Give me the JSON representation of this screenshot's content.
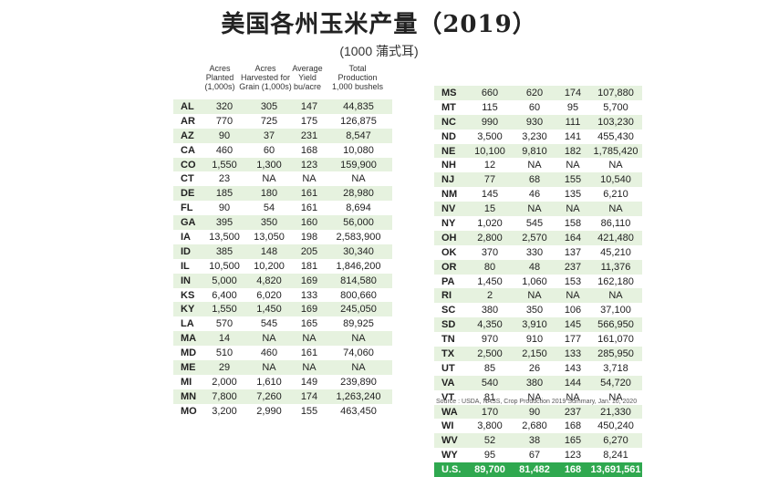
{
  "title": "美国各州玉米产量（2019）",
  "subtitle": "(1000 蒲式耳)",
  "columns": [
    {
      "line1": "Acres",
      "line2": "Planted",
      "line3": "(1,000s)"
    },
    {
      "line1": "Acres",
      "line2": "Harvested for",
      "line3": "Grain (1,000s)"
    },
    {
      "line1": "Average",
      "line2": "Yield",
      "line3": "bu/acre"
    },
    {
      "line1": "Total",
      "line2": "Production",
      "line3": "1,000 bushels"
    }
  ],
  "chart_data": {
    "type": "table",
    "title": "美国各州玉米产量（2019）",
    "subtitle": "(1000 蒲式耳)",
    "headers": [
      "Acres Planted (1,000s)",
      "Acres Harvested for Grain (1,000s)",
      "Average Yield bu/acre",
      "Total Production 1,000 bushels"
    ],
    "rows": [
      [
        "AL",
        "320",
        "305",
        "147",
        "44,835"
      ],
      [
        "AR",
        "770",
        "725",
        "175",
        "126,875"
      ],
      [
        "AZ",
        "90",
        "37",
        "231",
        "8,547"
      ],
      [
        "CA",
        "460",
        "60",
        "168",
        "10,080"
      ],
      [
        "CO",
        "1,550",
        "1,300",
        "123",
        "159,900"
      ],
      [
        "CT",
        "23",
        "NA",
        "NA",
        "NA"
      ],
      [
        "DE",
        "185",
        "180",
        "161",
        "28,980"
      ],
      [
        "FL",
        "90",
        "54",
        "161",
        "8,694"
      ],
      [
        "GA",
        "395",
        "350",
        "160",
        "56,000"
      ],
      [
        "IA",
        "13,500",
        "13,050",
        "198",
        "2,583,900"
      ],
      [
        "ID",
        "385",
        "148",
        "205",
        "30,340"
      ],
      [
        "IL",
        "10,500",
        "10,200",
        "181",
        "1,846,200"
      ],
      [
        "IN",
        "5,000",
        "4,820",
        "169",
        "814,580"
      ],
      [
        "KS",
        "6,400",
        "6,020",
        "133",
        "800,660"
      ],
      [
        "KY",
        "1,550",
        "1,450",
        "169",
        "245,050"
      ],
      [
        "LA",
        "570",
        "545",
        "165",
        "89,925"
      ],
      [
        "MA",
        "14",
        "NA",
        "NA",
        "NA"
      ],
      [
        "MD",
        "510",
        "460",
        "161",
        "74,060"
      ],
      [
        "ME",
        "29",
        "NA",
        "NA",
        "NA"
      ],
      [
        "MI",
        "2,000",
        "1,610",
        "149",
        "239,890"
      ],
      [
        "MN",
        "7,800",
        "7,260",
        "174",
        "1,263,240"
      ],
      [
        "MO",
        "3,200",
        "2,990",
        "155",
        "463,450"
      ],
      [
        "MS",
        "660",
        "620",
        "174",
        "107,880"
      ],
      [
        "MT",
        "115",
        "60",
        "95",
        "5,700"
      ],
      [
        "NC",
        "990",
        "930",
        "111",
        "103,230"
      ],
      [
        "ND",
        "3,500",
        "3,230",
        "141",
        "455,430"
      ],
      [
        "NE",
        "10,100",
        "9,810",
        "182",
        "1,785,420"
      ],
      [
        "NH",
        "12",
        "NA",
        "NA",
        "NA"
      ],
      [
        "NJ",
        "77",
        "68",
        "155",
        "10,540"
      ],
      [
        "NM",
        "145",
        "46",
        "135",
        "6,210"
      ],
      [
        "NV",
        "15",
        "NA",
        "NA",
        "NA"
      ],
      [
        "NY",
        "1,020",
        "545",
        "158",
        "86,110"
      ],
      [
        "OH",
        "2,800",
        "2,570",
        "164",
        "421,480"
      ],
      [
        "OK",
        "370",
        "330",
        "137",
        "45,210"
      ],
      [
        "OR",
        "80",
        "48",
        "237",
        "11,376"
      ],
      [
        "PA",
        "1,450",
        "1,060",
        "153",
        "162,180"
      ],
      [
        "RI",
        "2",
        "NA",
        "NA",
        "NA"
      ],
      [
        "SC",
        "380",
        "350",
        "106",
        "37,100"
      ],
      [
        "SD",
        "4,350",
        "3,910",
        "145",
        "566,950"
      ],
      [
        "TN",
        "970",
        "910",
        "177",
        "161,070"
      ],
      [
        "TX",
        "2,500",
        "2,150",
        "133",
        "285,950"
      ],
      [
        "UT",
        "85",
        "26",
        "143",
        "3,718"
      ],
      [
        "VA",
        "540",
        "380",
        "144",
        "54,720"
      ],
      [
        "VT",
        "81",
        "NA",
        "NA",
        "NA"
      ],
      [
        "WA",
        "170",
        "90",
        "237",
        "21,330"
      ],
      [
        "WI",
        "3,800",
        "2,680",
        "168",
        "450,240"
      ],
      [
        "WV",
        "52",
        "38",
        "165",
        "6,270"
      ],
      [
        "WY",
        "95",
        "67",
        "123",
        "8,241"
      ]
    ],
    "total": [
      "U.S.",
      "89,700",
      "81,482",
      "168",
      "13,691,561"
    ]
  },
  "source": "Source : USDA, NASS, Crop Production 2019 Summary, Jan. 10, 2020",
  "colors": {
    "stripe": "#e6f2df",
    "total_row": "#2fa84f"
  }
}
